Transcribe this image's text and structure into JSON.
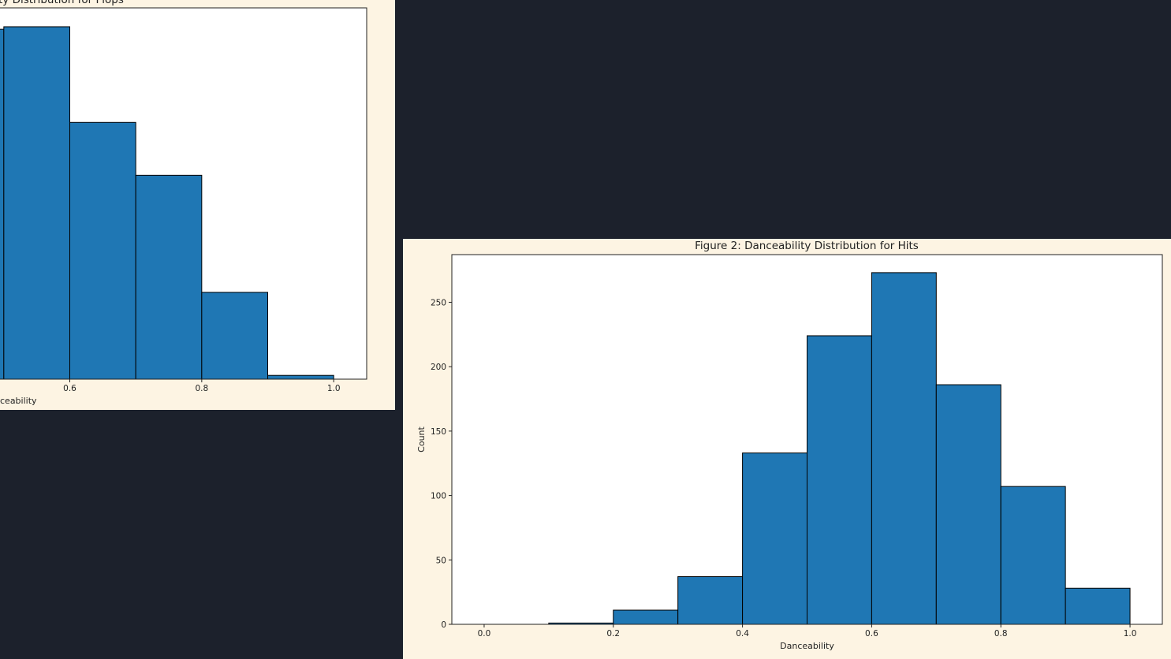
{
  "colors": {
    "desktop_bg": "#1c212c",
    "figure_bg": "#fdf4e3",
    "plot_bg": "#ffffff",
    "bar_fill": "#1f77b4",
    "bar_edge": "#000000"
  },
  "chart_data": [
    {
      "type": "bar",
      "title": "ty Distribution for Flops",
      "xlabel": "ceability",
      "ylabel": "",
      "bins": [
        [
          0.4,
          0.5
        ],
        [
          0.5,
          0.6
        ],
        [
          0.6,
          0.7
        ],
        [
          0.7,
          0.8
        ],
        [
          0.8,
          0.9
        ],
        [
          0.9,
          1.0
        ]
      ],
      "values": [
        278,
        280,
        204,
        162,
        69,
        3
      ],
      "xlim": [
        0.45,
        1.05
      ],
      "ylim": [
        0,
        295
      ],
      "xticks": [
        "0.6",
        "0.8",
        "1.0"
      ],
      "grid": false
    },
    {
      "type": "bar",
      "title": "Figure 2: Danceability Distribution for Hits",
      "xlabel": "Danceability",
      "ylabel": "Count",
      "bins": [
        [
          0.0,
          0.1
        ],
        [
          0.1,
          0.2
        ],
        [
          0.2,
          0.3
        ],
        [
          0.3,
          0.4
        ],
        [
          0.4,
          0.5
        ],
        [
          0.5,
          0.6
        ],
        [
          0.6,
          0.7
        ],
        [
          0.7,
          0.8
        ],
        [
          0.8,
          0.9
        ],
        [
          0.9,
          1.0
        ]
      ],
      "values": [
        0,
        1,
        11,
        37,
        133,
        224,
        273,
        186,
        107,
        28
      ],
      "xlim": [
        -0.05,
        1.05
      ],
      "ylim": [
        0,
        287
      ],
      "xticks": [
        "0.0",
        "0.2",
        "0.4",
        "0.6",
        "0.8",
        "1.0"
      ],
      "yticks": [
        "0",
        "50",
        "100",
        "150",
        "200",
        "250"
      ],
      "grid": false
    }
  ]
}
